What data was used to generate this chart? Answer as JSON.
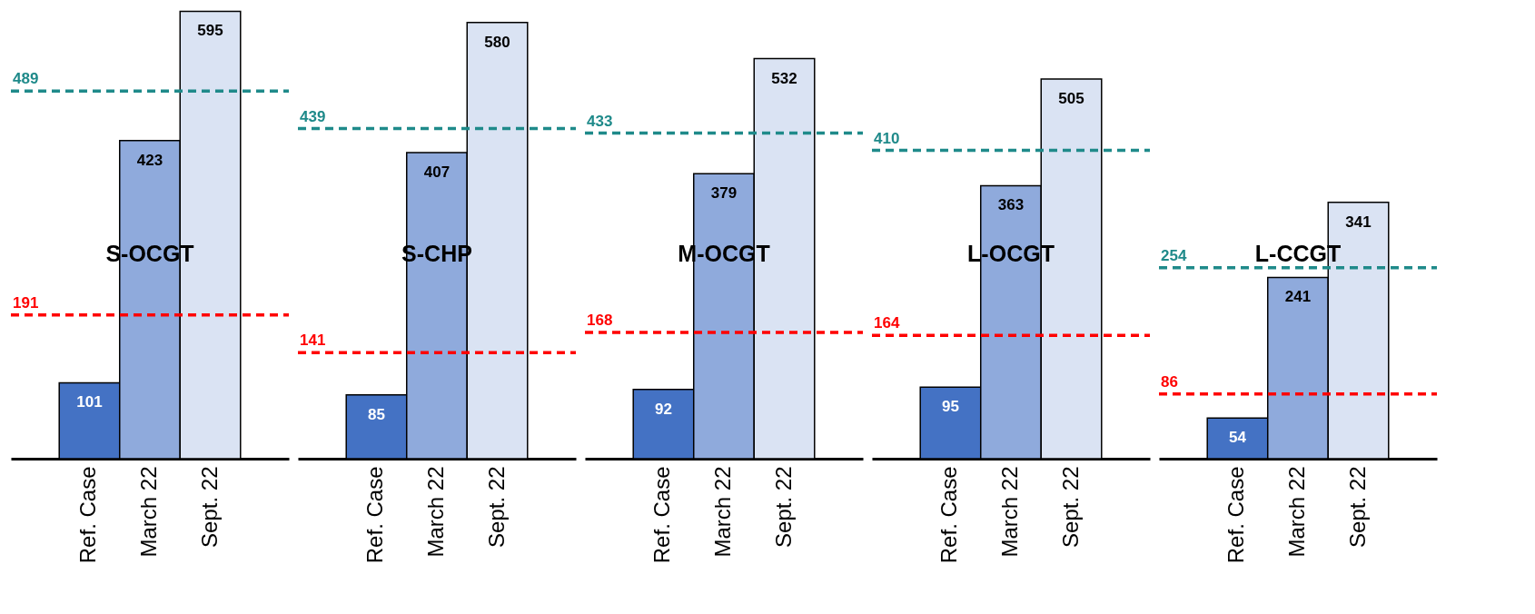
{
  "chart_data": [
    {
      "type": "bar",
      "categories": [
        "Ref. Case",
        "March 22",
        "Sept. 22"
      ],
      "values": [
        101,
        423,
        595
      ],
      "colors": [
        "#4472c4",
        "#8faadc",
        "#dae3f3"
      ],
      "data_labels": true,
      "annotations": [
        "S-OCGT"
      ],
      "ref_lines": [
        {
          "axis": "y",
          "value": 489,
          "label": "489",
          "color": "#1f8a8a",
          "line_style": "dashed"
        },
        {
          "axis": "y",
          "value": 191,
          "label": "191",
          "color": "#ff0000",
          "line_style": "dashed"
        }
      ]
    },
    {
      "type": "bar",
      "categories": [
        "Ref. Case",
        "March 22",
        "Sept. 22"
      ],
      "values": [
        85,
        407,
        580
      ],
      "colors": [
        "#4472c4",
        "#8faadc",
        "#dae3f3"
      ],
      "data_labels": true,
      "annotations": [
        "S-CHP"
      ],
      "ref_lines": [
        {
          "axis": "y",
          "value": 439,
          "label": "439",
          "color": "#1f8a8a",
          "line_style": "dashed"
        },
        {
          "axis": "y",
          "value": 141,
          "label": "141",
          "color": "#ff0000",
          "line_style": "dashed"
        }
      ]
    },
    {
      "type": "bar",
      "categories": [
        "Ref. Case",
        "March 22",
        "Sept. 22"
      ],
      "values": [
        92,
        379,
        532
      ],
      "colors": [
        "#4472c4",
        "#8faadc",
        "#dae3f3"
      ],
      "data_labels": true,
      "annotations": [
        "M-OCGT"
      ],
      "ref_lines": [
        {
          "axis": "y",
          "value": 433,
          "label": "433",
          "color": "#1f8a8a",
          "line_style": "dashed"
        },
        {
          "axis": "y",
          "value": 168,
          "label": "168",
          "color": "#ff0000",
          "line_style": "dashed"
        }
      ]
    },
    {
      "type": "bar",
      "categories": [
        "Ref. Case",
        "March 22",
        "Sept. 22"
      ],
      "values": [
        95,
        363,
        505
      ],
      "colors": [
        "#4472c4",
        "#8faadc",
        "#dae3f3"
      ],
      "data_labels": true,
      "annotations": [
        "L-OCGT"
      ],
      "ref_lines": [
        {
          "axis": "y",
          "value": 410,
          "label": "410",
          "color": "#1f8a8a",
          "line_style": "dashed"
        },
        {
          "axis": "y",
          "value": 164,
          "label": "164",
          "color": "#ff0000",
          "line_style": "dashed"
        }
      ]
    },
    {
      "type": "bar",
      "categories": [
        "Ref. Case",
        "March 22",
        "Sept. 22"
      ],
      "values": [
        54,
        241,
        341
      ],
      "colors": [
        "#4472c4",
        "#8faadc",
        "#dae3f3"
      ],
      "data_labels": true,
      "annotations": [
        "L-CCGT"
      ],
      "ref_lines": [
        {
          "axis": "y",
          "value": 254,
          "label": "254",
          "color": "#1f8a8a",
          "line_style": "dashed"
        },
        {
          "axis": "y",
          "value": 86,
          "label": "86",
          "color": "#ff0000",
          "line_style": "dashed"
        }
      ]
    }
  ]
}
